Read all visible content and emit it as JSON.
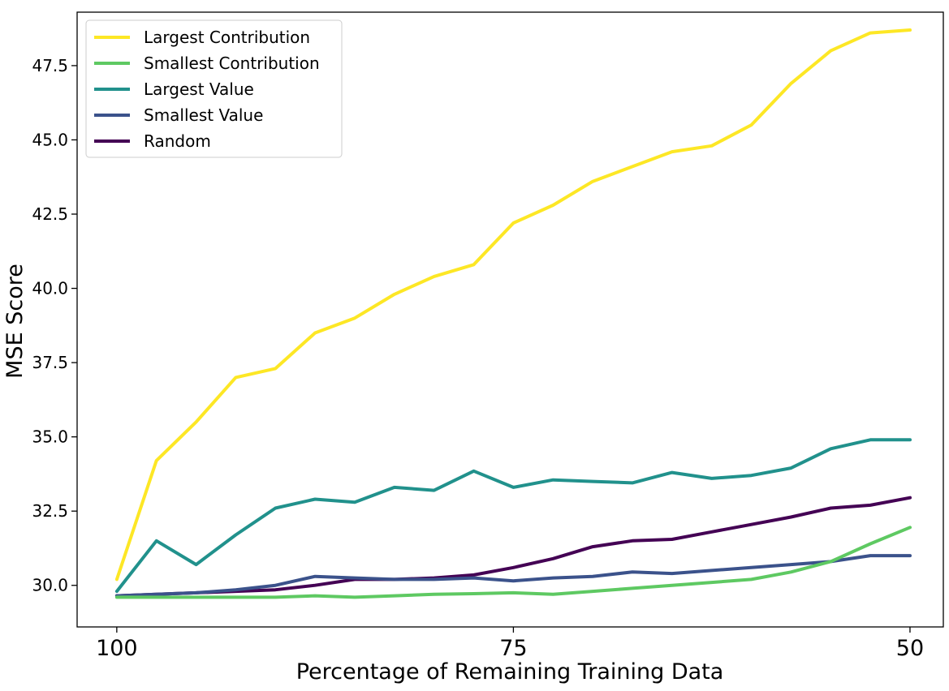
{
  "chart_data": {
    "type": "line",
    "title": "",
    "xlabel": "Percentage of Remaining Training Data",
    "ylabel": "MSE Score",
    "xlim": [
      102.5,
      47.9
    ],
    "ylim": [
      28.6,
      49.3
    ],
    "x_reversed": true,
    "x_ticks": [
      100,
      75,
      50
    ],
    "y_ticks": [
      30.0,
      32.5,
      35.0,
      37.5,
      40.0,
      42.5,
      45.0,
      47.5
    ],
    "y_tick_labels": [
      "30.0",
      "32.5",
      "35.0",
      "37.5",
      "40.0",
      "42.5",
      "45.0",
      "47.5"
    ],
    "grid": false,
    "legend_position": "top-left",
    "x": [
      100,
      97.5,
      95,
      92.5,
      90,
      87.5,
      85,
      82.5,
      80,
      77.5,
      75,
      72.5,
      70,
      67.5,
      65,
      62.5,
      60,
      57.5,
      55,
      52.5,
      50
    ],
    "series": [
      {
        "name": "Largest Contribution",
        "color": "#fde725",
        "values": [
          30.2,
          34.2,
          35.5,
          37.0,
          37.3,
          38.5,
          39.0,
          39.8,
          40.4,
          40.8,
          42.2,
          42.8,
          43.6,
          44.1,
          44.6,
          44.8,
          45.5,
          46.9,
          48.0,
          48.6,
          48.7
        ]
      },
      {
        "name": "Smallest Contribution",
        "color": "#5ec962",
        "values": [
          29.6,
          29.6,
          29.6,
          29.6,
          29.6,
          29.65,
          29.6,
          29.65,
          29.7,
          29.72,
          29.75,
          29.7,
          29.8,
          29.9,
          30.0,
          30.1,
          30.2,
          30.45,
          30.8,
          31.4,
          31.95
        ]
      },
      {
        "name": "Largest Value",
        "color": "#21918c",
        "values": [
          29.8,
          31.5,
          30.7,
          31.7,
          32.6,
          32.9,
          32.8,
          33.3,
          33.2,
          33.85,
          33.3,
          33.55,
          33.5,
          33.45,
          33.8,
          33.6,
          33.7,
          33.95,
          34.6,
          34.9,
          34.9
        ]
      },
      {
        "name": "Smallest Value",
        "color": "#3b528b",
        "values": [
          29.65,
          29.7,
          29.75,
          29.85,
          30.0,
          30.3,
          30.25,
          30.2,
          30.2,
          30.25,
          30.15,
          30.25,
          30.3,
          30.45,
          30.4,
          30.5,
          30.6,
          30.7,
          30.8,
          31.0,
          31.0
        ]
      },
      {
        "name": "Random",
        "color": "#440154",
        "values": [
          29.65,
          29.7,
          29.75,
          29.8,
          29.85,
          30.0,
          30.2,
          30.2,
          30.25,
          30.35,
          30.6,
          30.9,
          31.3,
          31.5,
          31.55,
          31.8,
          32.05,
          32.3,
          32.6,
          32.7,
          32.95
        ]
      }
    ]
  }
}
